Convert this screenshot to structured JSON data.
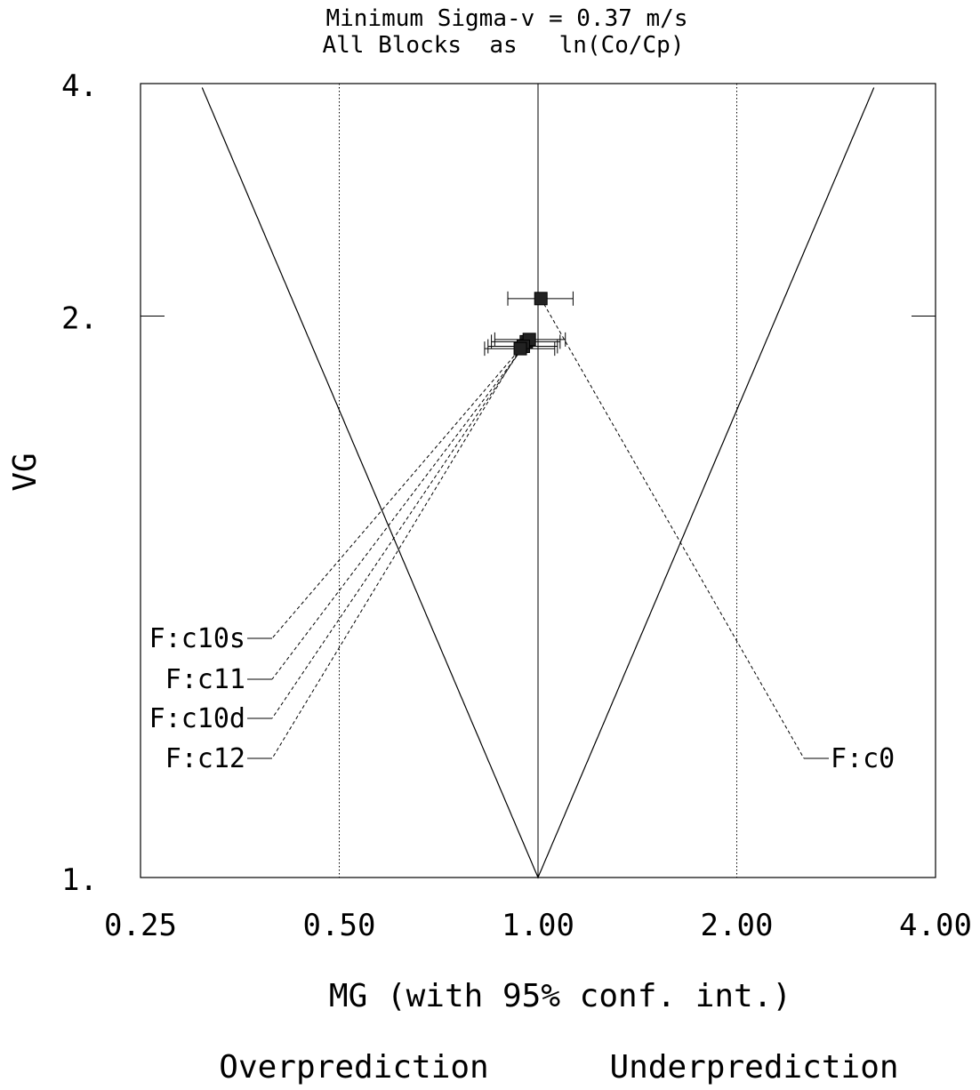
{
  "chart_data": {
    "type": "scatter",
    "title": "Minimum Sigma-v = 0.37 m/s",
    "subtitle": "All Blocks  as   ln(Co/Cp)",
    "xlabel": "MG (with 95% conf. int.)",
    "ylabel": "VG",
    "x_scale": "log",
    "y_scale": "exp of squared log",
    "xlim": [
      0.25,
      4.0
    ],
    "ylim": [
      1.0,
      4.0
    ],
    "x_ticks": [
      "0.25",
      "0.50",
      "1.00",
      "2.00",
      "4.00"
    ],
    "y_ticks": [
      "1.",
      "2.",
      "4."
    ],
    "x_tick_values": [
      0.25,
      0.5,
      1.0,
      2.0,
      4.0
    ],
    "y_tick_values": [
      1.0,
      2.0,
      4.0
    ],
    "reference_lines_x": [
      0.5,
      1.0,
      2.0
    ],
    "bottom_labels": [
      "Overprediction",
      "Underprediction"
    ],
    "points": [
      {
        "label": "F:c0",
        "mg": 1.01,
        "vg": 2.09,
        "ci": [
          0.9,
          1.13
        ]
      },
      {
        "label": "F:c10s",
        "mg": 0.96,
        "vg": 1.88,
        "ci": [
          0.85,
          1.08
        ]
      },
      {
        "label": "F:c11",
        "mg": 0.97,
        "vg": 1.89,
        "ci": [
          0.86,
          1.1
        ]
      },
      {
        "label": "F:c10d",
        "mg": 0.95,
        "vg": 1.86,
        "ci": [
          0.84,
          1.07
        ]
      },
      {
        "label": "F:c12",
        "mg": 0.94,
        "vg": 1.85,
        "ci": [
          0.83,
          1.06
        ]
      }
    ]
  }
}
